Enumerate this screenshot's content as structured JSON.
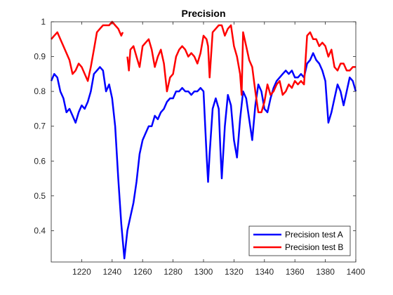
{
  "chart_data": {
    "type": "line",
    "title": "Precision",
    "xlabel": "",
    "ylabel": "",
    "xlim": [
      1200,
      1400
    ],
    "ylim": [
      0.31,
      1.0
    ],
    "xticks": [
      1220,
      1240,
      1260,
      1280,
      1300,
      1320,
      1340,
      1360,
      1380,
      1400
    ],
    "yticks": [
      0.4,
      0.5,
      0.6,
      0.7,
      0.8,
      0.9,
      1
    ],
    "ytick_labels": [
      "0.4",
      "0.5",
      "0.6",
      "0.7",
      "0.8",
      "0.9",
      "1"
    ],
    "grid": false,
    "legend_position": "bottom-right",
    "series": [
      {
        "name": "Precision test A",
        "color": "#0000ff",
        "x": [
          1200,
          1202,
          1204,
          1206,
          1208,
          1210,
          1212,
          1214,
          1216,
          1218,
          1220,
          1222,
          1224,
          1226,
          1228,
          1230,
          1232,
          1234,
          1236,
          1238,
          1240,
          1242,
          1244,
          1246,
          1247,
          1248,
          1250,
          1252,
          1254,
          1256,
          1258,
          1260,
          1262,
          1264,
          1266,
          1268,
          1270,
          1272,
          1274,
          1276,
          1278,
          1280,
          1282,
          1284,
          1286,
          1288,
          1290,
          1292,
          1294,
          1296,
          1298,
          1300,
          1302,
          1303,
          1304,
          1306,
          1308,
          1310,
          1311,
          1312,
          1314,
          1316,
          1318,
          1320,
          1322,
          1324,
          1326,
          1328,
          1330,
          1332,
          1334,
          1336,
          1338,
          1340,
          1342,
          1344,
          1346,
          1348,
          1350,
          1352,
          1354,
          1356,
          1358,
          1360,
          1362,
          1364,
          1366,
          1368,
          1370,
          1372,
          1374,
          1376,
          1378,
          1380,
          1382,
          1384,
          1386,
          1388,
          1390,
          1392,
          1394,
          1396,
          1398,
          1400
        ],
        "y": [
          0.83,
          0.85,
          0.84,
          0.8,
          0.78,
          0.74,
          0.75,
          0.73,
          0.71,
          0.74,
          0.76,
          0.75,
          0.77,
          0.8,
          0.85,
          0.86,
          0.87,
          0.86,
          0.8,
          0.82,
          0.78,
          0.7,
          0.55,
          0.42,
          0.37,
          0.32,
          0.4,
          0.44,
          0.48,
          0.54,
          0.62,
          0.66,
          0.68,
          0.7,
          0.7,
          0.73,
          0.72,
          0.74,
          0.75,
          0.77,
          0.78,
          0.78,
          0.8,
          0.8,
          0.81,
          0.8,
          0.8,
          0.79,
          0.8,
          0.8,
          0.81,
          0.8,
          0.62,
          0.54,
          0.62,
          0.75,
          0.78,
          0.75,
          0.64,
          0.55,
          0.7,
          0.79,
          0.76,
          0.66,
          0.61,
          0.72,
          0.8,
          0.78,
          0.72,
          0.66,
          0.76,
          0.82,
          0.8,
          0.75,
          0.74,
          0.78,
          0.81,
          0.83,
          0.84,
          0.85,
          0.86,
          0.85,
          0.86,
          0.84,
          0.84,
          0.85,
          0.84,
          0.88,
          0.89,
          0.91,
          0.89,
          0.88,
          0.86,
          0.83,
          0.71,
          0.74,
          0.78,
          0.82,
          0.8,
          0.76,
          0.8,
          0.84,
          0.83,
          0.8
        ]
      },
      {
        "name": "Precision test B",
        "color": "#ff0000",
        "x": [
          1200,
          1202,
          1204,
          1206,
          1208,
          1210,
          1212,
          1214,
          1216,
          1218,
          1220,
          1222,
          1224,
          1226,
          1228,
          1230,
          1232,
          1234,
          1236,
          1238,
          1240,
          1242,
          1244,
          1246,
          1247,
          null,
          1250,
          1251,
          1252,
          1254,
          1256,
          1258,
          1260,
          1262,
          1264,
          1266,
          1268,
          1270,
          1272,
          1274,
          1276,
          1278,
          1280,
          1282,
          1284,
          1286,
          1288,
          1290,
          1292,
          1294,
          1296,
          1298,
          1300,
          1302,
          1303,
          1304,
          1306,
          1308,
          1310,
          1312,
          1314,
          1316,
          1318,
          1320,
          1322,
          1324,
          1325,
          1326,
          1328,
          1330,
          1332,
          1334,
          1336,
          1338,
          1340,
          1342,
          1344,
          1346,
          1348,
          1350,
          1352,
          1354,
          1356,
          1358,
          1360,
          1362,
          1364,
          1366,
          1368,
          1370,
          1372,
          1374,
          1376,
          1378,
          1380,
          1382,
          1384,
          1386,
          1388,
          1390,
          1392,
          1394,
          1396,
          1398,
          1400
        ],
        "y": [
          0.95,
          0.96,
          0.97,
          0.95,
          0.93,
          0.91,
          0.89,
          0.85,
          0.86,
          0.88,
          0.87,
          0.85,
          0.83,
          0.87,
          0.92,
          0.97,
          0.98,
          0.99,
          0.99,
          0.99,
          1.0,
          0.99,
          0.98,
          0.96,
          0.97,
          null,
          0.9,
          0.86,
          0.92,
          0.93,
          0.9,
          0.87,
          0.93,
          0.94,
          0.95,
          0.92,
          0.87,
          0.9,
          0.92,
          0.88,
          0.8,
          0.84,
          0.85,
          0.9,
          0.92,
          0.93,
          0.92,
          0.9,
          0.91,
          0.9,
          0.88,
          0.91,
          0.96,
          0.95,
          0.93,
          0.84,
          0.97,
          0.98,
          0.99,
          0.99,
          0.96,
          0.98,
          0.99,
          0.93,
          0.9,
          0.85,
          0.79,
          0.97,
          0.93,
          0.89,
          0.87,
          0.8,
          0.74,
          0.74,
          0.77,
          0.82,
          0.79,
          0.8,
          0.82,
          0.83,
          0.79,
          0.8,
          0.82,
          0.81,
          0.83,
          0.82,
          0.83,
          0.82,
          0.96,
          0.97,
          0.95,
          0.95,
          0.93,
          0.94,
          0.93,
          0.9,
          0.92,
          0.87,
          0.86,
          0.88,
          0.88,
          0.86,
          0.86,
          0.87,
          0.87
        ]
      }
    ]
  }
}
